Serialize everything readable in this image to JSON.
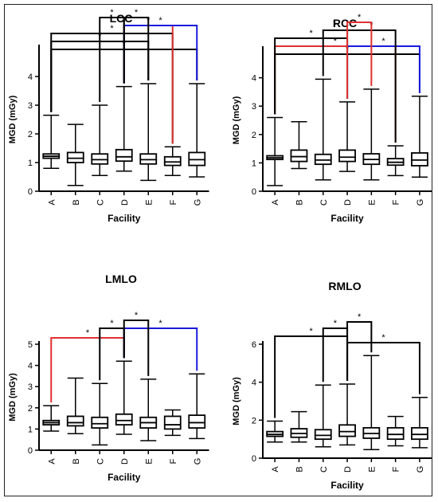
{
  "chart_data": [
    {
      "type": "boxplot",
      "title": "LCC",
      "xlabel": "Facility",
      "ylabel": "MGD (mGy)",
      "categories": [
        "A",
        "B",
        "C",
        "D",
        "E",
        "F",
        "G"
      ],
      "ylim": [
        0,
        5
      ],
      "yticks": [
        0,
        1,
        2,
        3,
        4
      ],
      "boxes": [
        {
          "min": 0.8,
          "q1": 1.15,
          "median": 1.22,
          "q3": 1.3,
          "max": 2.65
        },
        {
          "min": 0.2,
          "q1": 1.0,
          "median": 1.15,
          "q3": 1.35,
          "max": 2.33
        },
        {
          "min": 0.55,
          "q1": 0.95,
          "median": 1.1,
          "q3": 1.3,
          "max": 3.0
        },
        {
          "min": 0.7,
          "q1": 1.05,
          "median": 1.2,
          "q3": 1.45,
          "max": 3.65
        },
        {
          "min": 0.38,
          "q1": 0.95,
          "median": 1.1,
          "q3": 1.3,
          "max": 3.75
        },
        {
          "min": 0.55,
          "q1": 0.9,
          "median": 1.02,
          "q3": 1.2,
          "max": 1.55
        },
        {
          "min": 0.5,
          "q1": 0.9,
          "median": 1.1,
          "q3": 1.35,
          "max": 3.75
        }
      ],
      "significance": [
        {
          "from": 0,
          "to": 6,
          "color": "#000000",
          "label": "*"
        },
        {
          "from": 0,
          "to": 4,
          "color": "#000000",
          "label": "*"
        },
        {
          "from": 0,
          "to": 5,
          "color": "#000000",
          "label": "*"
        },
        {
          "from": 3,
          "to": 5,
          "color": "#e03030",
          "label": "*"
        },
        {
          "from": 3,
          "to": 6,
          "color": "#1a1adc",
          "label": "*"
        },
        {
          "from": 2,
          "to": 3,
          "color": "#000000",
          "label": "*"
        },
        {
          "from": 3,
          "to": 4,
          "color": "#000000",
          "label": "*"
        }
      ]
    },
    {
      "type": "boxplot",
      "title": "RCC",
      "xlabel": "Facility",
      "ylabel": "MGD (mGy)",
      "categories": [
        "A",
        "B",
        "C",
        "D",
        "E",
        "F",
        "G"
      ],
      "ylim": [
        0,
        5
      ],
      "yticks": [
        0,
        1,
        2,
        3,
        4
      ],
      "boxes": [
        {
          "min": 0.2,
          "q1": 1.12,
          "median": 1.18,
          "q3": 1.25,
          "max": 2.6
        },
        {
          "min": 0.8,
          "q1": 1.05,
          "median": 1.22,
          "q3": 1.45,
          "max": 2.45
        },
        {
          "min": 0.4,
          "q1": 0.95,
          "median": 1.1,
          "q3": 1.3,
          "max": 3.95
        },
        {
          "min": 0.7,
          "q1": 1.05,
          "median": 1.2,
          "q3": 1.45,
          "max": 3.15
        },
        {
          "min": 0.4,
          "q1": 0.95,
          "median": 1.12,
          "q3": 1.32,
          "max": 3.6
        },
        {
          "min": 0.55,
          "q1": 0.92,
          "median": 1.02,
          "q3": 1.15,
          "max": 1.6
        },
        {
          "min": 0.5,
          "q1": 0.9,
          "median": 1.1,
          "q3": 1.35,
          "max": 3.35
        }
      ],
      "significance": [
        {
          "from": 0,
          "to": 6,
          "color": "#000000",
          "label": "*"
        },
        {
          "from": 0,
          "to": 5,
          "color": "#e03030",
          "label": "*"
        },
        {
          "from": 0,
          "to": 3,
          "color": "#000000",
          "label": "*"
        },
        {
          "from": 3,
          "to": 6,
          "color": "#1a1adc",
          "label": "*"
        },
        {
          "from": 2,
          "to": 3,
          "color": "#000000",
          "label": "*"
        },
        {
          "from": 3,
          "to": 5,
          "color": "#000000",
          "label": "*"
        },
        {
          "from": 3,
          "to": 4,
          "color": "#e03030",
          "label": "*"
        }
      ]
    },
    {
      "type": "boxplot",
      "title": "LMLO",
      "xlabel": "Facility",
      "ylabel": "MGD (mGy)",
      "categories": [
        "A",
        "B",
        "C",
        "D",
        "E",
        "F",
        "G"
      ],
      "ylim": [
        0,
        5
      ],
      "yticks": [
        0,
        1,
        2,
        3,
        4,
        5
      ],
      "boxes": [
        {
          "min": 0.9,
          "q1": 1.2,
          "median": 1.3,
          "q3": 1.4,
          "max": 2.1
        },
        {
          "min": 0.78,
          "q1": 1.15,
          "median": 1.3,
          "q3": 1.6,
          "max": 3.4
        },
        {
          "min": 0.25,
          "q1": 1.05,
          "median": 1.25,
          "q3": 1.55,
          "max": 3.15
        },
        {
          "min": 0.75,
          "q1": 1.2,
          "median": 1.4,
          "q3": 1.7,
          "max": 4.2
        },
        {
          "min": 0.45,
          "q1": 1.05,
          "median": 1.3,
          "q3": 1.55,
          "max": 3.35
        },
        {
          "min": 0.7,
          "q1": 1.0,
          "median": 1.2,
          "q3": 1.6,
          "max": 1.9
        },
        {
          "min": 0.55,
          "q1": 1.05,
          "median": 1.3,
          "q3": 1.65,
          "max": 3.6
        }
      ],
      "significance": [
        {
          "from": 0,
          "to": 3,
          "color": "#e03030",
          "label": "*"
        },
        {
          "from": 3,
          "to": 6,
          "color": "#1a1adc",
          "label": "*"
        },
        {
          "from": 2,
          "to": 3,
          "color": "#000000",
          "label": "*"
        },
        {
          "from": 3,
          "to": 4,
          "color": "#000000",
          "label": "*"
        }
      ]
    },
    {
      "type": "boxplot",
      "title": "RMLO",
      "xlabel": "Facility",
      "ylabel": "MGD (mGy)",
      "categories": [
        "A",
        "B",
        "C",
        "D",
        "E",
        "F",
        "G"
      ],
      "ylim": [
        0,
        6
      ],
      "yticks": [
        0,
        2,
        4,
        6
      ],
      "boxes": [
        {
          "min": 0.85,
          "q1": 1.15,
          "median": 1.25,
          "q3": 1.4,
          "max": 1.95
        },
        {
          "min": 0.85,
          "q1": 1.1,
          "median": 1.3,
          "q3": 1.55,
          "max": 2.45
        },
        {
          "min": 0.6,
          "q1": 1.0,
          "median": 1.2,
          "q3": 1.5,
          "max": 3.85
        },
        {
          "min": 0.7,
          "q1": 1.15,
          "median": 1.4,
          "q3": 1.75,
          "max": 3.9
        },
        {
          "min": 0.45,
          "q1": 1.05,
          "median": 1.3,
          "q3": 1.6,
          "max": 5.4
        },
        {
          "min": 0.65,
          "q1": 1.0,
          "median": 1.25,
          "q3": 1.6,
          "max": 2.2
        },
        {
          "min": 0.55,
          "q1": 1.0,
          "median": 1.25,
          "q3": 1.6,
          "max": 3.2
        }
      ],
      "significance": [
        {
          "from": 0,
          "to": 3,
          "color": "#000000",
          "label": "*"
        },
        {
          "from": 3,
          "to": 6,
          "color": "#000000",
          "label": "*"
        },
        {
          "from": 2,
          "to": 3,
          "color": "#000000",
          "label": "*"
        },
        {
          "from": 3,
          "to": 4,
          "color": "#000000",
          "label": "*"
        }
      ]
    }
  ]
}
